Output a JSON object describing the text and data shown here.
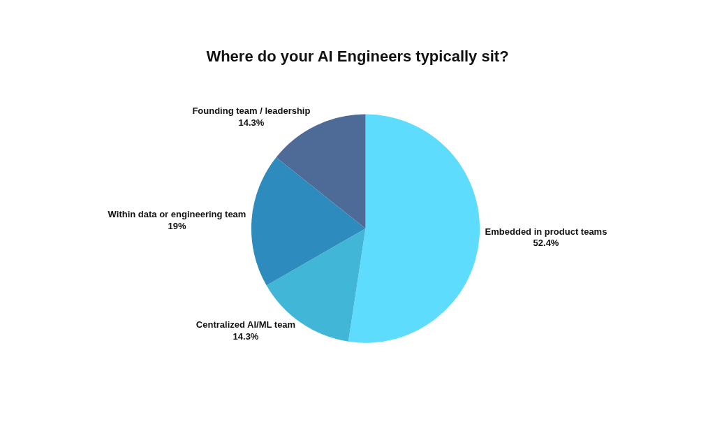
{
  "chart_data": {
    "type": "pie",
    "title": "Where do your AI Engineers typically sit?",
    "categories": [
      "Embedded in product teams",
      "Centralized AI/ML team",
      "Within data or engineering team",
      "Founding team / leadership"
    ],
    "values": [
      52.4,
      14.3,
      19,
      14.3
    ],
    "value_labels": [
      "52.4%",
      "14.3%",
      "19%",
      "14.3%"
    ],
    "colors": [
      "#5ddcfd",
      "#41b6d6",
      "#2e8bbd",
      "#4d6b96"
    ],
    "legend": false
  }
}
